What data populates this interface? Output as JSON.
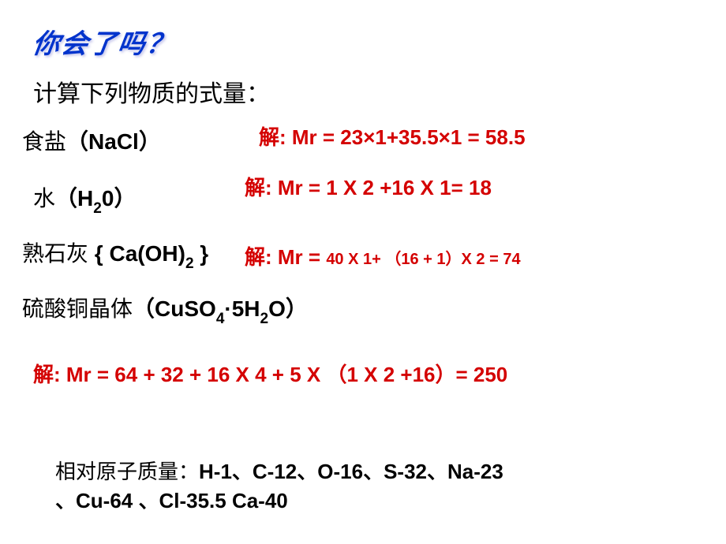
{
  "title_decorative": "你会了吗？",
  "instruction": "计算下列物质的式量：",
  "items": {
    "nacl": {
      "name": "食盐",
      "formula_html": "（<b>NaCl</b>）",
      "answer_prefix": "解:  ",
      "answer_mr": "Mr = 23×1+35.5×1 = 58.5"
    },
    "h2o": {
      "name": "水",
      "formula_html": "（<b>H<sub class='sub'>2</sub>0</b>）",
      "answer_prefix": "解:  ",
      "answer_mr": "Mr = 1 X 2 +16 X 1= 18"
    },
    "caoh2": {
      "name": "熟石灰",
      "formula_html": " { <b>Ca(OH)<sub class='sub'>2</sub></b> }",
      "answer_prefix": "解:  ",
      "answer_mr_prefix": "Mr = ",
      "answer_mr_small": "40 X 1+ （16 + 1）X 2 = 74"
    },
    "cuso4": {
      "name": "硫酸铜晶体",
      "formula_html": "（<b>CuSO<sub class='sub'>4</sub>·5H<sub class='sub'>2</sub>O</b>）",
      "answer_prefix": "解:  ",
      "answer_mr": "Mr = 64 + 32 + 16 X 4 + 5 X （1 X 2 +16）= 250"
    }
  },
  "refs_label": "相对原子质量：",
  "refs_line1_html": "H-1、C-12、O-16、S-32、Na-23",
  "refs_line2_html": "、Cu-64 、Cl-35.5    Ca-40",
  "colors": {
    "title": "#0033cc",
    "text": "#000000",
    "answer": "#d40000",
    "background": "#ffffff"
  },
  "fontsizes": {
    "title": 34,
    "instruction": 30,
    "row": 28,
    "answer": 26,
    "small_calc": 20,
    "refs": 26
  }
}
